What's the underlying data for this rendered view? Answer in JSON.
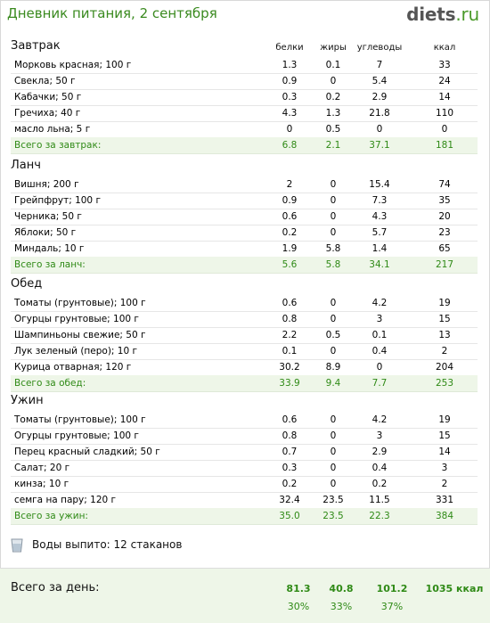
{
  "header": {
    "title": "Дневник питания, 2 сентября",
    "logo_main": "diets",
    "logo_suffix": ".ru"
  },
  "columns": [
    "белки",
    "жиры",
    "углеводы",
    "ккал"
  ],
  "meals": [
    {
      "title": "Завтрак",
      "items": [
        {
          "name": "Морковь красная; 100 г",
          "protein": "1.3",
          "fat": "0.1",
          "carbs": "7",
          "kcal": "33"
        },
        {
          "name": "Свекла; 50 г",
          "protein": "0.9",
          "fat": "0",
          "carbs": "5.4",
          "kcal": "24"
        },
        {
          "name": "Кабачки; 50 г",
          "protein": "0.3",
          "fat": "0.2",
          "carbs": "2.9",
          "kcal": "14"
        },
        {
          "name": "Гречиха; 40 г",
          "protein": "4.3",
          "fat": "1.3",
          "carbs": "21.8",
          "kcal": "110"
        },
        {
          "name": "масло льна; 5 г",
          "protein": "0",
          "fat": "0.5",
          "carbs": "0",
          "kcal": "0"
        }
      ],
      "total": {
        "name": "Всего за завтрак:",
        "protein": "6.8",
        "fat": "2.1",
        "carbs": "37.1",
        "kcal": "181"
      }
    },
    {
      "title": "Ланч",
      "items": [
        {
          "name": "Вишня; 200 г",
          "protein": "2",
          "fat": "0",
          "carbs": "15.4",
          "kcal": "74"
        },
        {
          "name": "Грейпфрут; 100 г",
          "protein": "0.9",
          "fat": "0",
          "carbs": "7.3",
          "kcal": "35"
        },
        {
          "name": "Черника; 50 г",
          "protein": "0.6",
          "fat": "0",
          "carbs": "4.3",
          "kcal": "20"
        },
        {
          "name": "Яблоки; 50 г",
          "protein": "0.2",
          "fat": "0",
          "carbs": "5.7",
          "kcal": "23"
        },
        {
          "name": "Миндаль; 10 г",
          "protein": "1.9",
          "fat": "5.8",
          "carbs": "1.4",
          "kcal": "65"
        }
      ],
      "total": {
        "name": "Всего за ланч:",
        "protein": "5.6",
        "fat": "5.8",
        "carbs": "34.1",
        "kcal": "217"
      }
    },
    {
      "title": "Обед",
      "items": [
        {
          "name": "Томаты (грунтовые); 100 г",
          "protein": "0.6",
          "fat": "0",
          "carbs": "4.2",
          "kcal": "19"
        },
        {
          "name": "Огурцы грунтовые; 100 г",
          "protein": "0.8",
          "fat": "0",
          "carbs": "3",
          "kcal": "15"
        },
        {
          "name": "Шампиньоны свежие; 50 г",
          "protein": "2.2",
          "fat": "0.5",
          "carbs": "0.1",
          "kcal": "13"
        },
        {
          "name": "Лук зеленый (перо); 10 г",
          "protein": "0.1",
          "fat": "0",
          "carbs": "0.4",
          "kcal": "2"
        },
        {
          "name": "Курица отварная; 120 г",
          "protein": "30.2",
          "fat": "8.9",
          "carbs": "0",
          "kcal": "204"
        }
      ],
      "total": {
        "name": "Всего за обед:",
        "protein": "33.9",
        "fat": "9.4",
        "carbs": "7.7",
        "kcal": "253"
      }
    },
    {
      "title": "Ужин",
      "items": [
        {
          "name": "Томаты (грунтовые); 100 г",
          "protein": "0.6",
          "fat": "0",
          "carbs": "4.2",
          "kcal": "19"
        },
        {
          "name": "Огурцы грунтовые; 100 г",
          "protein": "0.8",
          "fat": "0",
          "carbs": "3",
          "kcal": "15"
        },
        {
          "name": "Перец красный сладкий; 50 г",
          "protein": "0.7",
          "fat": "0",
          "carbs": "2.9",
          "kcal": "14"
        },
        {
          "name": "Салат; 20 г",
          "protein": "0.3",
          "fat": "0",
          "carbs": "0.4",
          "kcal": "3"
        },
        {
          "name": "кинза; 10 г",
          "protein": "0.2",
          "fat": "0",
          "carbs": "0.2",
          "kcal": "2"
        },
        {
          "name": "семга на пару; 120 г",
          "protein": "32.4",
          "fat": "23.5",
          "carbs": "11.5",
          "kcal": "331"
        }
      ],
      "total": {
        "name": "Всего за ужин:",
        "protein": "35.0",
        "fat": "23.5",
        "carbs": "22.3",
        "kcal": "384"
      }
    }
  ],
  "water": {
    "text": "Воды выпито: 12 стаканов"
  },
  "day_total": {
    "label": "Всего за день:",
    "protein": "81.3",
    "fat": "40.8",
    "carbs": "101.2",
    "kcal": "1035 ккал",
    "protein_pct": "30%",
    "fat_pct": "33%",
    "carbs_pct": "37%"
  },
  "colors": {
    "accent_green": "#2f8a16",
    "total_bg": "#eef6e8"
  }
}
